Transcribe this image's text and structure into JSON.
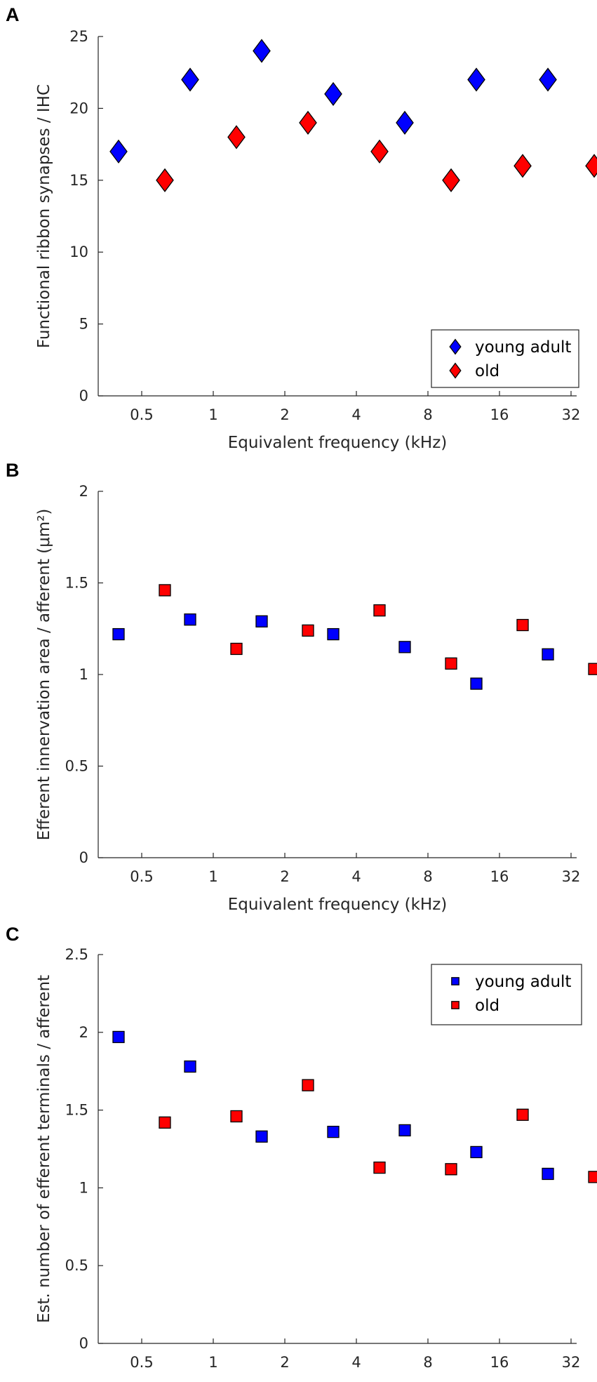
{
  "figure": {
    "panel_letters": [
      "A",
      "B",
      "C"
    ]
  },
  "chart_data": [
    {
      "type": "scatter",
      "panel": "A",
      "marker": "diamond",
      "title": "",
      "xlabel": "Equivalent frequency (kHz)",
      "ylabel": "Functional ribbon synapses / IHC",
      "x_categories": [
        "0.5",
        "1",
        "2",
        "4",
        "8",
        "16",
        "32"
      ],
      "ylim": [
        0,
        25
      ],
      "yticks": [
        0,
        5,
        10,
        15,
        20,
        25
      ],
      "ytick_labels": [
        "0",
        "5",
        "10",
        "15",
        "20",
        "25"
      ],
      "legend_position": "bottom-right",
      "series": [
        {
          "name": "young adult",
          "color": "#0000ff",
          "offset": -0.5,
          "values": [
            17,
            22,
            24,
            21,
            19,
            22,
            22
          ]
        },
        {
          "name": "old",
          "color": "#ff0000",
          "offset": 0.5,
          "values": [
            15,
            18,
            19,
            17,
            15,
            16,
            16
          ]
        }
      ]
    },
    {
      "type": "scatter",
      "panel": "B",
      "marker": "square",
      "title": "",
      "xlabel": "Equivalent frequency (kHz)",
      "ylabel": "Efferent innervation area / afferent (μm²)",
      "x_categories": [
        "0.5",
        "1",
        "2",
        "4",
        "8",
        "16",
        "32"
      ],
      "ylim": [
        0,
        2
      ],
      "yticks": [
        0,
        0.5,
        1,
        1.5,
        2
      ],
      "ytick_labels": [
        "0",
        "0.5",
        "1",
        "1.5",
        "2"
      ],
      "legend_position": "none",
      "series": [
        {
          "name": "young adult",
          "color": "#0000ff",
          "offset": -0.5,
          "values": [
            1.22,
            1.3,
            1.29,
            1.22,
            1.15,
            0.95,
            1.11
          ]
        },
        {
          "name": "old",
          "color": "#ff0000",
          "offset": 0.5,
          "values": [
            1.46,
            1.14,
            1.24,
            1.35,
            1.06,
            1.27,
            1.03
          ]
        }
      ]
    },
    {
      "type": "scatter",
      "panel": "C",
      "marker": "square",
      "title": "",
      "xlabel": "Equivalent frequency (kHz)",
      "ylabel": "Est. number of efferent terminals / afferent",
      "x_categories": [
        "0.5",
        "1",
        "2",
        "4",
        "8",
        "16",
        "32"
      ],
      "ylim": [
        0,
        2.5
      ],
      "yticks": [
        0,
        0.5,
        1,
        1.5,
        2,
        2.5
      ],
      "ytick_labels": [
        "0",
        "0.5",
        "1",
        "1.5",
        "2",
        "2.5"
      ],
      "legend_position": "top-right",
      "series": [
        {
          "name": "young adult",
          "color": "#0000ff",
          "offset": -0.5,
          "values": [
            1.97,
            1.78,
            1.33,
            1.36,
            1.37,
            1.23,
            1.09
          ]
        },
        {
          "name": "old",
          "color": "#ff0000",
          "offset": 0.5,
          "values": [
            1.42,
            1.46,
            1.66,
            1.13,
            1.12,
            1.47,
            1.07
          ]
        }
      ]
    }
  ]
}
